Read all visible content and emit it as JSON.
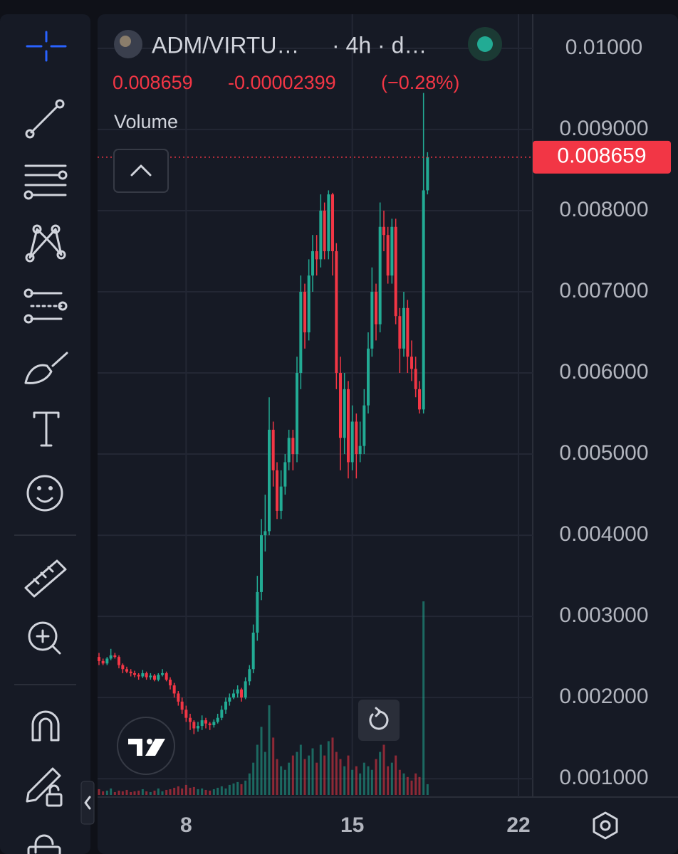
{
  "header": {
    "symbol": "ADM/VIRTU…",
    "interval": "· 4h · d…",
    "change": -2.399e-05,
    "change_percent": "(−0.28%)",
    "indicator": "Volume"
  },
  "chart_data": {
    "type": "candlestick",
    "up_color": "#22ab94",
    "down_color": "#f23645",
    "grid": true,
    "x": [
      4.33,
      4.5,
      4.67,
      4.83,
      5,
      5.17,
      5.33,
      5.5,
      5.67,
      5.83,
      6,
      6.17,
      6.33,
      6.5,
      6.67,
      6.83,
      7,
      7.17,
      7.33,
      7.5,
      7.67,
      7.83,
      8,
      8.17,
      8.33,
      8.5,
      8.67,
      8.83,
      9,
      9.17,
      9.33,
      9.5,
      9.67,
      9.83,
      10,
      10.17,
      10.33,
      10.5,
      10.67,
      10.83,
      11,
      11.17,
      11.33,
      11.5,
      11.67,
      11.83,
      12,
      12.17,
      12.33,
      12.5,
      12.67,
      12.83,
      13,
      13.17,
      13.33,
      13.5,
      13.67,
      13.83,
      14,
      14.17,
      14.33,
      14.5,
      14.67,
      14.83,
      15,
      15.17,
      15.33,
      15.5,
      15.67,
      15.83,
      16,
      16.17,
      16.33,
      16.5,
      16.67,
      16.83,
      17,
      17.17,
      17.33,
      17.5,
      17.67,
      17.83,
      18,
      18.17
    ],
    "open": [
      0.0025,
      0.00245,
      0.00242,
      0.00248,
      0.00252,
      0.0025,
      0.0024,
      0.00235,
      0.00232,
      0.0023,
      0.00228,
      0.00226,
      0.0023,
      0.00225,
      0.00227,
      0.00222,
      0.00228,
      0.0023,
      0.00222,
      0.00215,
      0.00205,
      0.00195,
      0.00185,
      0.00175,
      0.0017,
      0.00162,
      0.00165,
      0.00172,
      0.00168,
      0.00166,
      0.0017,
      0.00175,
      0.00185,
      0.00195,
      0.002,
      0.00205,
      0.0021,
      0.002,
      0.0022,
      0.00235,
      0.0028,
      0.0033,
      0.004,
      0.00405,
      0.0053,
      0.0048,
      0.0043,
      0.0046,
      0.0049,
      0.0052,
      0.005,
      0.006,
      0.007,
      0.0065,
      0.0072,
      0.0075,
      0.0074,
      0.008,
      0.0075,
      0.0082,
      0.0075,
      0.006,
      0.0052,
      0.0058,
      0.0049,
      0.0054,
      0.005,
      0.0051,
      0.0056,
      0.0063,
      0.007,
      0.0066,
      0.0078,
      0.0077,
      0.0072,
      0.0078,
      0.0067,
      0.0063,
      0.0068,
      0.0062,
      0.00605,
      0.0058,
      0.00555,
      0.00825
    ],
    "high": [
      0.00255,
      0.00248,
      0.0025,
      0.0026,
      0.00255,
      0.00252,
      0.00242,
      0.00238,
      0.00235,
      0.00233,
      0.0023,
      0.00234,
      0.00232,
      0.0023,
      0.00229,
      0.0023,
      0.00235,
      0.00232,
      0.00225,
      0.00218,
      0.00208,
      0.002,
      0.0019,
      0.0018,
      0.00172,
      0.0017,
      0.00178,
      0.00175,
      0.0017,
      0.00173,
      0.0018,
      0.0019,
      0.002,
      0.00205,
      0.0021,
      0.00215,
      0.00212,
      0.00225,
      0.0024,
      0.0029,
      0.0035,
      0.0042,
      0.0045,
      0.0057,
      0.0054,
      0.0049,
      0.0048,
      0.005,
      0.0053,
      0.0053,
      0.0062,
      0.0072,
      0.0071,
      0.0074,
      0.0077,
      0.0077,
      0.0082,
      0.0081,
      0.00825,
      0.00822,
      0.0076,
      0.0062,
      0.006,
      0.0059,
      0.0056,
      0.0055,
      0.0054,
      0.0058,
      0.0065,
      0.0073,
      0.0071,
      0.0081,
      0.008,
      0.0078,
      0.0079,
      0.0079,
      0.0068,
      0.007,
      0.0069,
      0.0064,
      0.0062,
      0.0059,
      0.00945,
      0.00872
    ],
    "low": [
      0.0024,
      0.0024,
      0.0024,
      0.00246,
      0.00248,
      0.00236,
      0.0023,
      0.0023,
      0.00226,
      0.00225,
      0.00222,
      0.00224,
      0.00222,
      0.00222,
      0.0022,
      0.0022,
      0.00226,
      0.0022,
      0.0021,
      0.002,
      0.0019,
      0.0018,
      0.0017,
      0.0016,
      0.00155,
      0.00158,
      0.0016,
      0.00162,
      0.0016,
      0.00163,
      0.00168,
      0.00172,
      0.0018,
      0.0019,
      0.00198,
      0.002,
      0.00195,
      0.00198,
      0.00215,
      0.0023,
      0.0027,
      0.0032,
      0.0038,
      0.004,
      0.0046,
      0.0042,
      0.0042,
      0.0045,
      0.0048,
      0.0048,
      0.0049,
      0.0058,
      0.0063,
      0.0064,
      0.007,
      0.0072,
      0.0073,
      0.0074,
      0.0074,
      0.0072,
      0.0058,
      0.0048,
      0.005,
      0.0047,
      0.0048,
      0.0047,
      0.0049,
      0.005,
      0.0055,
      0.0062,
      0.0064,
      0.0065,
      0.0075,
      0.0071,
      0.0071,
      0.0066,
      0.006,
      0.0062,
      0.006,
      0.0059,
      0.0057,
      0.0055,
      0.0055,
      0.0082
    ],
    "close": [
      0.00245,
      0.00242,
      0.00248,
      0.00252,
      0.0025,
      0.0024,
      0.00235,
      0.00232,
      0.0023,
      0.00228,
      0.00226,
      0.0023,
      0.00225,
      0.00227,
      0.00222,
      0.00228,
      0.0023,
      0.00222,
      0.00215,
      0.00205,
      0.00195,
      0.00185,
      0.00175,
      0.0017,
      0.00162,
      0.00165,
      0.00172,
      0.00168,
      0.00166,
      0.0017,
      0.00175,
      0.00185,
      0.00195,
      0.002,
      0.00205,
      0.0021,
      0.002,
      0.0022,
      0.00235,
      0.0028,
      0.0033,
      0.004,
      0.00405,
      0.0053,
      0.0048,
      0.0043,
      0.0046,
      0.0049,
      0.0052,
      0.005,
      0.006,
      0.007,
      0.0065,
      0.0072,
      0.0075,
      0.0074,
      0.008,
      0.0075,
      0.0082,
      0.0075,
      0.006,
      0.0052,
      0.0058,
      0.0049,
      0.0054,
      0.005,
      0.0051,
      0.0056,
      0.0063,
      0.007,
      0.0066,
      0.0078,
      0.0077,
      0.0072,
      0.0078,
      0.0067,
      0.0063,
      0.0068,
      0.0062,
      0.00605,
      0.0058,
      0.00555,
      0.00825,
      0.008659
    ],
    "volume": [
      8,
      5,
      6,
      9,
      4,
      6,
      5,
      7,
      4,
      5,
      6,
      8,
      5,
      4,
      6,
      9,
      5,
      7,
      8,
      10,
      12,
      9,
      14,
      10,
      11,
      8,
      9,
      7,
      6,
      8,
      10,
      12,
      9,
      14,
      16,
      18,
      15,
      20,
      30,
      45,
      70,
      95,
      60,
      125,
      80,
      50,
      40,
      35,
      45,
      55,
      60,
      70,
      50,
      55,
      65,
      45,
      70,
      55,
      75,
      80,
      60,
      50,
      40,
      55,
      35,
      40,
      30,
      45,
      40,
      35,
      50,
      60,
      70,
      40,
      45,
      55,
      35,
      30,
      25,
      20,
      30,
      25,
      270,
      15
    ],
    "xlim": [
      4.27,
      22.6
    ],
    "xticks": [
      8,
      15,
      22
    ],
    "ylim": [
      0.0008,
      0.01042
    ],
    "yticks": [
      {
        "value": 0.01,
        "label": "0.01000"
      },
      {
        "value": 0.009,
        "label": "0.009000"
      },
      {
        "value": 0.008,
        "label": "0.008000"
      },
      {
        "value": 0.007,
        "label": "0.007000"
      },
      {
        "value": 0.006,
        "label": "0.006000"
      },
      {
        "value": 0.005,
        "label": "0.005000"
      },
      {
        "value": 0.004,
        "label": "0.004000"
      },
      {
        "value": 0.003,
        "label": "0.003000"
      },
      {
        "value": 0.002,
        "label": "0.002000"
      },
      {
        "value": 0.001,
        "label": "0.001000"
      }
    ]
  }
}
